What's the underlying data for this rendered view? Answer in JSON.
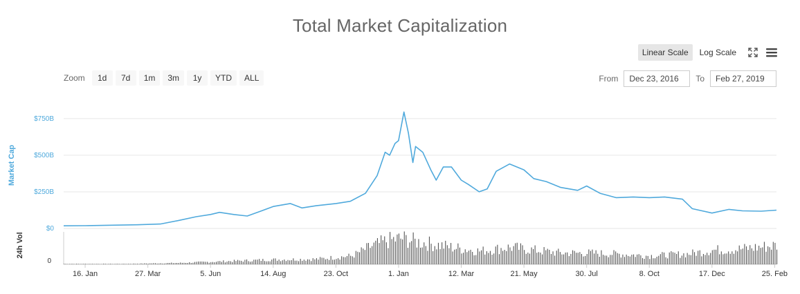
{
  "title": "Total Market Capitalization",
  "scale_options": [
    {
      "label": "Linear Scale",
      "active": true
    },
    {
      "label": "Log Scale",
      "active": false
    }
  ],
  "icons": {
    "fullscreen": "fullscreen-icon",
    "menu": "menu-icon"
  },
  "zoom": {
    "label": "Zoom",
    "buttons": [
      "1d",
      "7d",
      "1m",
      "3m",
      "1y",
      "YTD",
      "ALL"
    ]
  },
  "range": {
    "from_label": "From",
    "from_value": "Dec 23, 2016",
    "to_label": "To",
    "to_value": "Feb 27, 2019"
  },
  "colors": {
    "line": "#4fa9dc",
    "volume": "#555555",
    "grid": "#e6e6e6"
  },
  "chart_data": {
    "type": "line",
    "title": "Total Market Capitalization",
    "ylabel": "Market Cap",
    "y_ticks": [
      0,
      250,
      500,
      750
    ],
    "y_tick_labels": [
      "$0",
      "$250B",
      "$500B",
      "$750B"
    ],
    "ylim": [
      0,
      900
    ],
    "x_tick_labels": [
      "16. Jan",
      "27. Mar",
      "5. Jun",
      "14. Aug",
      "23. Oct",
      "1. Jan",
      "12. Mar",
      "21. May",
      "30. Jul",
      "8. Oct",
      "17. Dec",
      "25. Feb"
    ],
    "x_tick_dates": [
      "2017-01-16",
      "2017-03-27",
      "2017-06-05",
      "2017-08-14",
      "2017-10-23",
      "2018-01-01",
      "2018-03-12",
      "2018-05-21",
      "2018-07-30",
      "2018-10-08",
      "2018-12-17",
      "2019-02-25"
    ],
    "x_range": [
      "2016-12-23",
      "2019-02-27"
    ],
    "grid": true,
    "series": [
      {
        "name": "Market Cap",
        "x": [
          "2016-12-23",
          "2017-01-16",
          "2017-02-15",
          "2017-03-15",
          "2017-04-10",
          "2017-05-01",
          "2017-05-20",
          "2017-06-05",
          "2017-06-15",
          "2017-07-01",
          "2017-07-16",
          "2017-08-01",
          "2017-08-14",
          "2017-09-02",
          "2017-09-15",
          "2017-10-01",
          "2017-10-23",
          "2017-11-08",
          "2017-11-25",
          "2017-12-08",
          "2017-12-17",
          "2017-12-22",
          "2017-12-28",
          "2018-01-01",
          "2018-01-07",
          "2018-01-12",
          "2018-01-17",
          "2018-01-20",
          "2018-01-28",
          "2018-02-06",
          "2018-02-12",
          "2018-02-20",
          "2018-03-01",
          "2018-03-12",
          "2018-03-20",
          "2018-04-01",
          "2018-04-10",
          "2018-04-20",
          "2018-05-05",
          "2018-05-21",
          "2018-06-01",
          "2018-06-15",
          "2018-07-01",
          "2018-07-20",
          "2018-07-30",
          "2018-08-14",
          "2018-09-01",
          "2018-09-20",
          "2018-10-08",
          "2018-10-25",
          "2018-11-14",
          "2018-11-25",
          "2018-12-17",
          "2019-01-05",
          "2019-01-20",
          "2019-02-10",
          "2019-02-27"
        ],
        "y": [
          18,
          19,
          22,
          25,
          30,
          55,
          80,
          95,
          110,
          95,
          85,
          120,
          150,
          170,
          140,
          155,
          170,
          185,
          240,
          360,
          520,
          500,
          580,
          600,
          795,
          650,
          450,
          560,
          520,
          400,
          330,
          420,
          420,
          330,
          300,
          250,
          270,
          390,
          440,
          400,
          340,
          320,
          280,
          260,
          290,
          240,
          210,
          215,
          210,
          215,
          200,
          135,
          105,
          130,
          120,
          118,
          125
        ]
      }
    ],
    "volume": {
      "name": "24h Vol",
      "y_tick_labels": [
        "0"
      ],
      "x": [
        "2016-12-23",
        "2017-03-01",
        "2017-05-01",
        "2017-06-15",
        "2017-08-14",
        "2017-10-01",
        "2017-11-10",
        "2017-12-01",
        "2017-12-20",
        "2018-01-05",
        "2018-01-20",
        "2018-02-10",
        "2018-03-01",
        "2018-04-01",
        "2018-05-05",
        "2018-06-01",
        "2018-07-01",
        "2018-08-01",
        "2018-09-01",
        "2018-10-08",
        "2018-11-20",
        "2018-12-17",
        "2019-01-15",
        "2019-02-27"
      ],
      "y": [
        1,
        1,
        3,
        6,
        10,
        11,
        18,
        38,
        50,
        55,
        48,
        42,
        36,
        28,
        36,
        30,
        24,
        24,
        22,
        18,
        22,
        30,
        32,
        40
      ],
      "ylim": [
        0,
        60
      ]
    }
  }
}
